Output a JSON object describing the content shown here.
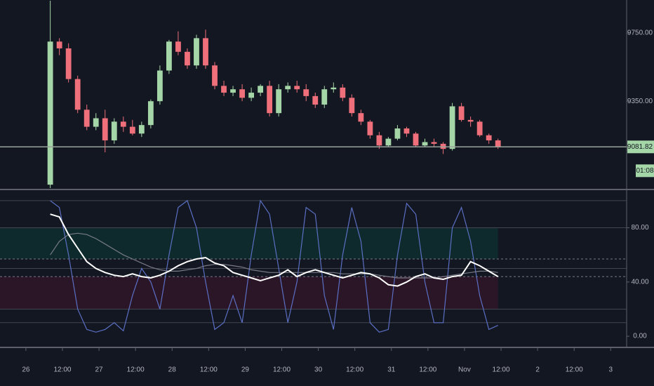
{
  "chart_data": [
    {
      "type": "candlestick",
      "x": [
        8,
        11,
        14,
        17,
        20,
        23,
        26,
        29,
        32,
        35,
        38,
        41,
        44,
        47,
        50,
        53,
        56,
        59,
        62,
        65,
        68,
        71,
        74,
        77,
        80,
        83,
        86,
        89,
        92,
        95,
        98,
        101,
        104,
        107,
        110,
        113,
        116,
        119,
        122,
        125,
        128,
        131,
        134,
        137,
        140,
        143,
        146,
        149,
        152,
        155
      ],
      "open": [
        8860,
        9700,
        9660,
        9480,
        9300,
        9200,
        9250,
        9120,
        9230,
        9200,
        9160,
        9210,
        9350,
        9530,
        9700,
        9640,
        9560,
        9720,
        9560,
        9440,
        9400,
        9420,
        9370,
        9400,
        9440,
        9280,
        9420,
        9440,
        9420,
        9380,
        9330,
        9420,
        9430,
        9370,
        9280,
        9230,
        9150,
        9090,
        9130,
        9190,
        9160,
        9090,
        9110,
        9100,
        9070,
        9320,
        9240,
        9230,
        9150,
        9120
      ],
      "high": [
        9940,
        9720,
        9690,
        9500,
        9330,
        9280,
        9300,
        9250,
        9260,
        9240,
        9230,
        9360,
        9560,
        9710,
        9760,
        9660,
        9740,
        9770,
        9580,
        9470,
        9440,
        9450,
        9430,
        9450,
        9470,
        9450,
        9460,
        9470,
        9450,
        9400,
        9440,
        9460,
        9450,
        9390,
        9300,
        9240,
        9170,
        9140,
        9210,
        9200,
        9170,
        9130,
        9130,
        9110,
        9340,
        9340,
        9260,
        9240,
        9160,
        9130
      ],
      "low": [
        8840,
        9620,
        9460,
        9280,
        9180,
        9180,
        9050,
        9100,
        9170,
        9150,
        9140,
        9190,
        9330,
        9510,
        9620,
        9540,
        9540,
        9540,
        9420,
        9380,
        9380,
        9350,
        9350,
        9380,
        9260,
        9260,
        9400,
        9400,
        9350,
        9310,
        9310,
        9400,
        9350,
        9260,
        9210,
        9130,
        9070,
        9080,
        9120,
        9140,
        9080,
        9080,
        9080,
        9040,
        9060,
        9230,
        9200,
        9140,
        9100,
        9070
      ],
      "close": [
        9700,
        9660,
        9480,
        9300,
        9200,
        9250,
        9120,
        9230,
        9200,
        9160,
        9210,
        9350,
        9530,
        9700,
        9640,
        9560,
        9720,
        9560,
        9440,
        9400,
        9420,
        9370,
        9400,
        9440,
        9280,
        9420,
        9440,
        9420,
        9380,
        9330,
        9420,
        9430,
        9370,
        9280,
        9230,
        9150,
        9090,
        9130,
        9190,
        9160,
        9090,
        9110,
        9100,
        9070,
        9320,
        9240,
        9230,
        9150,
        9120,
        9082
      ],
      "up_color": "#a5d6a7",
      "down_color": "#ef6f7a",
      "xlim": [
        -8.5,
        197
      ],
      "ylim": [
        8840,
        9944
      ],
      "yticks": [
        {
          "value": 9350,
          "label": "9350.00"
        },
        {
          "value": 9750,
          "label": "9750.00"
        }
      ],
      "last_price": {
        "value": 9081.82,
        "label": "9081.82"
      },
      "last_price_color": "#a5d6a7",
      "countdown": "01:08"
    },
    {
      "type": "line",
      "x": [
        8,
        11,
        14,
        17,
        20,
        23,
        26,
        29,
        32,
        35,
        38,
        41,
        44,
        47,
        50,
        53,
        56,
        59,
        62,
        65,
        68,
        71,
        74,
        77,
        80,
        83,
        86,
        89,
        92,
        95,
        98,
        101,
        104,
        107,
        110,
        113,
        116,
        119,
        122,
        125,
        128,
        131,
        134,
        137,
        140,
        143,
        146,
        149,
        152,
        155
      ],
      "series": [
        {
          "color": "#5b6fc4",
          "values": [
            100,
            95,
            60,
            20,
            5,
            3,
            5,
            10,
            4,
            30,
            50,
            40,
            20,
            60,
            95,
            100,
            80,
            40,
            5,
            10,
            30,
            10,
            60,
            100,
            90,
            50,
            10,
            40,
            95,
            90,
            30,
            5,
            60,
            95,
            70,
            10,
            3,
            5,
            60,
            98,
            90,
            40,
            10,
            10,
            80,
            95,
            70,
            30,
            5,
            8
          ]
        },
        {
          "color": "#787b86",
          "values": [
            60,
            70,
            75,
            76,
            75,
            72,
            68,
            64,
            60,
            57,
            54,
            51,
            49,
            48,
            48,
            49,
            50,
            52,
            53,
            53,
            52,
            51,
            49,
            48,
            47,
            47,
            47,
            47,
            47,
            47,
            47,
            47,
            46,
            46,
            46,
            46,
            45,
            44,
            43,
            43,
            43,
            43,
            43,
            44,
            45,
            46,
            47,
            48,
            48,
            47
          ]
        },
        {
          "color": "#ffffff",
          "values": [
            90,
            88,
            75,
            65,
            55,
            50,
            47,
            45,
            44,
            46,
            44,
            43,
            45,
            48,
            52,
            55,
            57,
            58,
            54,
            52,
            47,
            45,
            43,
            41,
            43,
            45,
            49,
            44,
            47,
            49,
            47,
            45,
            43,
            45,
            47,
            46,
            43,
            38,
            37,
            40,
            44,
            46,
            43,
            42,
            44,
            45,
            55,
            52,
            48,
            44
          ]
        }
      ],
      "bands": [
        {
          "range": [
            57,
            80
          ],
          "color": "#0e2a2c"
        },
        {
          "range": [
            20,
            44
          ],
          "color": "#2b1628"
        }
      ],
      "levels": [
        100,
        80,
        50,
        20,
        10
      ],
      "dashed_levels": [
        57,
        44
      ],
      "xlim": [
        -8.5,
        197
      ],
      "ylim": [
        -7.2,
        107.2
      ],
      "yticks": [
        {
          "value": 0,
          "label": "0.00"
        },
        {
          "value": 40,
          "label": "40.00"
        },
        {
          "value": 80,
          "label": "80.00"
        }
      ],
      "xticks": [
        {
          "value": 0,
          "label": "26"
        },
        {
          "value": 12,
          "label": "12:00"
        },
        {
          "value": 24,
          "label": "27"
        },
        {
          "value": 36,
          "label": "12:00"
        },
        {
          "value": 48,
          "label": "28"
        },
        {
          "value": 60,
          "label": "12:00"
        },
        {
          "value": 72,
          "label": "29"
        },
        {
          "value": 84,
          "label": "12:00"
        },
        {
          "value": 96,
          "label": "30"
        },
        {
          "value": 108,
          "label": "12:00"
        },
        {
          "value": 120,
          "label": "31"
        },
        {
          "value": 132,
          "label": "12:00"
        },
        {
          "value": 144,
          "label": "Nov"
        },
        {
          "value": 156,
          "label": "12:00"
        },
        {
          "value": 168,
          "label": "2"
        },
        {
          "value": 180,
          "label": "12:00"
        },
        {
          "value": 192,
          "label": "3"
        }
      ]
    }
  ]
}
